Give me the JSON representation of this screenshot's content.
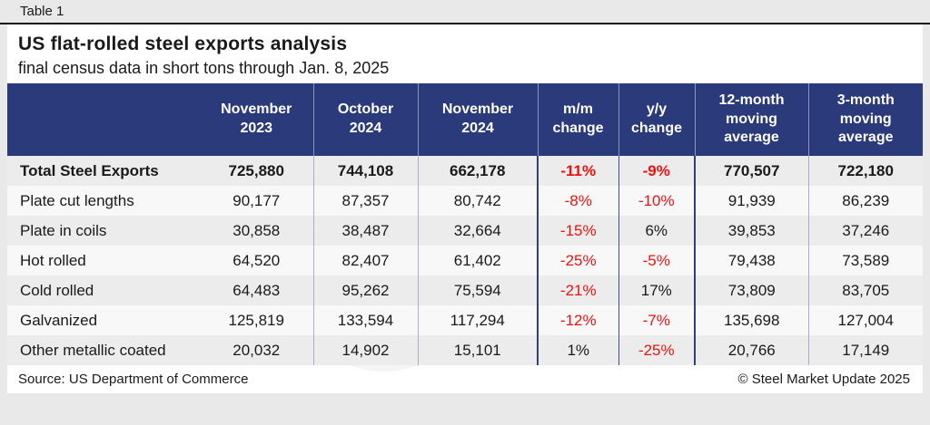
{
  "page": {
    "tag": "Table 1",
    "title": "US flat-rolled steel exports analysis",
    "subtitle": "final census data in short tons through Jan. 8, 2025",
    "source": "Source: US Department of Commerce",
    "copyright": "© Steel Market Update 2025"
  },
  "watermark": {
    "text": "Steel Market Update",
    "cru": "CRU"
  },
  "colors": {
    "header_bg": "#2a3a7a",
    "negative_text": "#ed1111",
    "body_text": "#1a1a1a",
    "row_alt_gray": "#ececec",
    "row_alt_white": "#f8f8f8",
    "outer_bg": "#e9e9e9"
  },
  "chart_data": {
    "type": "table",
    "title": "US flat-rolled steel exports analysis",
    "subtitle": "final census data in short tons through Jan. 8, 2025",
    "columns": [
      "",
      "November 2023",
      "October 2024",
      "November 2024",
      "m/m change",
      "y/y change",
      "12-month moving average",
      "3-month moving average"
    ],
    "header_lines": [
      [],
      [
        "November",
        "2023"
      ],
      [
        "October",
        "2024"
      ],
      [
        "November",
        "2024"
      ],
      [
        "m/m",
        "change"
      ],
      [
        "y/y",
        "change"
      ],
      [
        "12-month",
        "moving",
        "average"
      ],
      [
        "3-month",
        "moving",
        "average"
      ]
    ],
    "rows": [
      {
        "label": "Total Steel Exports",
        "bold": true,
        "values": [
          "725,880",
          "744,108",
          "662,178",
          "-11%",
          "-9%",
          "770,507",
          "722,180"
        ]
      },
      {
        "label": "Plate cut lengths",
        "bold": false,
        "values": [
          "90,177",
          "87,357",
          "80,742",
          "-8%",
          "-10%",
          "91,939",
          "86,239"
        ]
      },
      {
        "label": "Plate in coils",
        "bold": false,
        "values": [
          "30,858",
          "38,487",
          "32,664",
          "-15%",
          "6%",
          "39,853",
          "37,246"
        ]
      },
      {
        "label": "Hot rolled",
        "bold": false,
        "values": [
          "64,520",
          "82,407",
          "61,402",
          "-25%",
          "-5%",
          "79,438",
          "73,589"
        ]
      },
      {
        "label": "Cold rolled",
        "bold": false,
        "values": [
          "64,483",
          "95,262",
          "75,594",
          "-21%",
          "17%",
          "73,809",
          "83,705"
        ]
      },
      {
        "label": "Galvanized",
        "bold": false,
        "values": [
          "125,819",
          "133,594",
          "117,294",
          "-12%",
          "-7%",
          "135,698",
          "127,004"
        ]
      },
      {
        "label": "Other metallic coated",
        "bold": false,
        "values": [
          "20,032",
          "14,902",
          "15,101",
          "1%",
          "-25%",
          "20,766",
          "17,149"
        ]
      }
    ],
    "source": "US Department of Commerce",
    "notes": "negative percentage changes shown in red"
  }
}
